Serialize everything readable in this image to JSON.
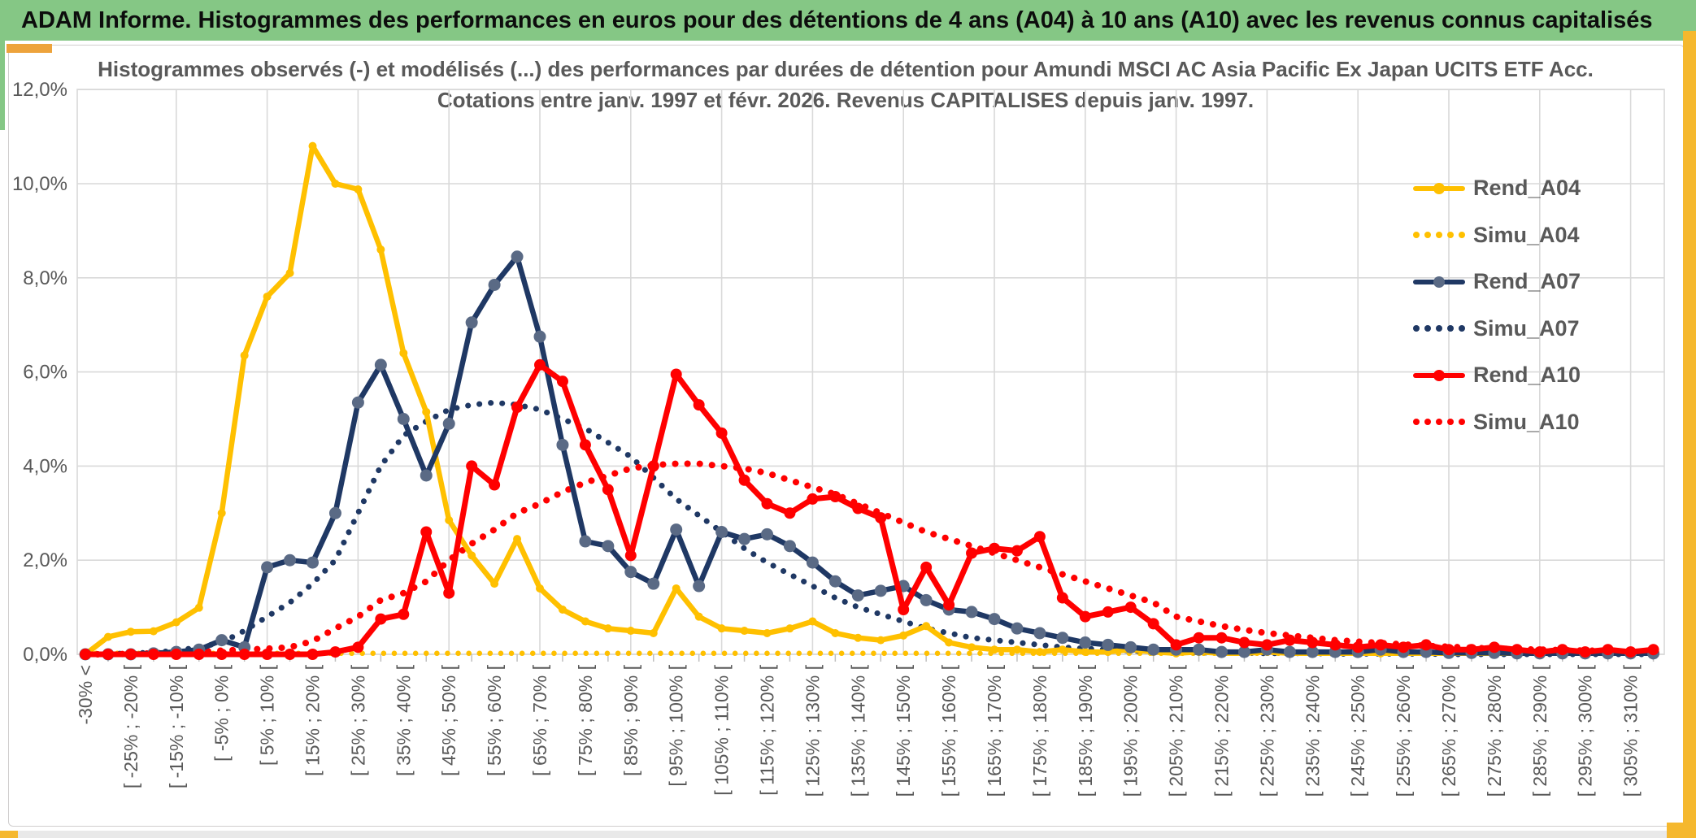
{
  "banner": {
    "title": "ADAM Informe. Histogrammes des performances en euros pour des détentions de 4 ans (A04) à 10 ans (A10) avec les revenus connus capitalisés"
  },
  "chart": {
    "title_line1": "Histogrammes observés (-) et modélisés (...) des performances par durées de détention pour Amundi MSCI AC Asia Pacific Ex Japan UCITS ETF Acc.",
    "title_line2": "Cotations entre janv. 1997 et févr. 2026. Revenus CAPITALISES depuis janv. 1997.",
    "colors": {
      "banner_green": "#85C785",
      "accent_gold": "#F5B82E",
      "grid": "#D9D9D9",
      "axis_line": "#BFBFBF",
      "axis_text": "#595959",
      "title_text": "#595959",
      "gold": "#FFC000",
      "navy": "#1F3864",
      "navy_marker": "#5A6A85",
      "red": "#FF0000"
    },
    "legend": [
      {
        "label": "Rend_A04",
        "series": "Rend_A04",
        "type": "line",
        "color": "#FFC000",
        "marker": "#FFC000"
      },
      {
        "label": "Simu_A04",
        "series": "Simu_A04",
        "type": "dots",
        "color": "#FFC000"
      },
      {
        "label": "Rend_A07",
        "series": "Rend_A07",
        "type": "line",
        "color": "#1F3864",
        "marker": "#5A6A85"
      },
      {
        "label": "Simu_A07",
        "series": "Simu_A07",
        "type": "dots",
        "color": "#1F3864"
      },
      {
        "label": "Rend_A10",
        "series": "Rend_A10",
        "type": "line",
        "color": "#FF0000",
        "marker": "#FF0000"
      },
      {
        "label": "Simu_A10",
        "series": "Simu_A10",
        "type": "dots",
        "color": "#FF0000"
      }
    ]
  },
  "chart_data": {
    "type": "line",
    "title": "Histogrammes observés (-) et modélisés (...) des performances par durées de détention pour Amundi MSCI AC Asia Pacific Ex Japan UCITS ETF Acc. Cotations entre janv. 1997 et févr. 2026. Revenus CAPITALISES depuis janv. 1997.",
    "xlabel": "",
    "ylabel": "",
    "ylim": [
      0,
      12
    ],
    "y_tick_labels": [
      "12,0%",
      "10,0%",
      "8,0%",
      "6,0%",
      "4,0%",
      "2,0%",
      "0,0%"
    ],
    "y_tick_values": [
      12,
      10,
      8,
      6,
      4,
      2,
      0
    ],
    "grid": true,
    "legend_position": "right",
    "x_label_every": 2,
    "x_labels": [
      "-30% <",
      "[ -25% ; -20% [",
      "[ -15% ; -10% [",
      "[ -5% ; 0% [",
      "[ 5% ; 10% [",
      "[ 15% ; 20% [",
      "[ 25% ; 30% [",
      "[ 35% ; 40% [",
      "[ 45% ; 50% [",
      "[ 55% ; 60% [",
      "[ 65% ; 70% [",
      "[ 75% ; 80% [",
      "[ 85% ; 90% [",
      "[ 95% ; 100% [",
      "[ 105% ; 110% [",
      "[ 115% ; 120% [",
      "[ 125% ; 130% [",
      "[ 135% ; 140% [",
      "[ 145% ; 150% [",
      "[ 155% ; 160% [",
      "[ 165% ; 170% [",
      "[ 175% ; 180% [",
      "[ 185% ; 190% [",
      "[ 195% ; 200% [",
      "[ 205% ; 210% [",
      "[ 215% ; 220% [",
      "[ 225% ; 230% [",
      "[ 235% ; 240% [",
      "[ 245% ; 250% [",
      "[ 255% ; 260% [",
      "[ 265% ; 270% [",
      "[ 275% ; 280% [",
      "[ 285% ; 290% [",
      "[ 295% ; 300% [",
      "[ 305% ; 310% ["
    ],
    "series": [
      {
        "name": "Rend_A04",
        "style": "solid",
        "color": "#FFC000",
        "marker_color": "#FFC000",
        "marker_r": 5,
        "width": 6.5,
        "values": [
          0,
          0.37,
          0.48,
          0.49,
          0.68,
          0.99,
          3.0,
          6.35,
          7.6,
          8.1,
          10.8,
          10.0,
          9.88,
          8.6,
          6.4,
          5.15,
          2.85,
          2.1,
          1.5,
          2.45,
          1.4,
          0.95,
          0.7,
          0.55,
          0.5,
          0.45,
          1.4,
          0.8,
          0.55,
          0.5,
          0.45,
          0.55,
          0.7,
          0.45,
          0.35,
          0.3,
          0.4,
          0.6,
          0.25,
          0.15,
          0.1,
          0.1,
          0.05,
          0.1,
          0.05,
          0.05,
          0.1,
          0.05,
          0.02,
          0.05,
          0.02,
          0.02,
          0.05,
          0.02,
          0.02,
          0.02,
          0.02,
          0.02,
          0.02,
          0.02,
          0.02,
          0.02,
          0.02,
          0.02,
          0.02,
          0.02,
          0.02,
          0.02,
          0.02,
          0.02
        ]
      },
      {
        "name": "Simu_A04",
        "style": "dotted",
        "color": "#FFC000",
        "width": 6.5,
        "gap": 13,
        "values": [
          0.02,
          0.02,
          0.02,
          0.02,
          0.02,
          0.02,
          0.02,
          0.02,
          0.02,
          0.02,
          0.02,
          0.02,
          0.02,
          0.02,
          0.02,
          0.02,
          0.02,
          0.02,
          0.02,
          0.02,
          0.02,
          0.02,
          0.02,
          0.02,
          0.02,
          0.02,
          0.02,
          0.02,
          0.02,
          0.02,
          0.02,
          0.02,
          0.02,
          0.02,
          0.02,
          0.02,
          0.02,
          0.02,
          0.02,
          0.02,
          0.02,
          0.02,
          0.02,
          0.02,
          0.02,
          0.02,
          0.02,
          0.02,
          0.02,
          0.02,
          0.02,
          0.02,
          0.02,
          0.02,
          0.02,
          0.02,
          0.02,
          0.02,
          0.02,
          0.02,
          0.02,
          0.02,
          0.02,
          0.02,
          0.02,
          0.02,
          0.02,
          0.02,
          0.02,
          0.02
        ]
      },
      {
        "name": "Rend_A07",
        "style": "solid",
        "color": "#1F3864",
        "marker_color": "#5A6A85",
        "marker_r": 7.5,
        "width": 6.5,
        "values": [
          0,
          0,
          0,
          0.02,
          0.05,
          0.1,
          0.3,
          0.15,
          1.85,
          2.0,
          1.95,
          3.0,
          5.35,
          6.15,
          5.0,
          3.8,
          4.9,
          7.05,
          7.85,
          8.45,
          6.75,
          4.45,
          2.4,
          2.3,
          1.75,
          1.5,
          2.65,
          1.45,
          2.6,
          2.45,
          2.55,
          2.3,
          1.95,
          1.55,
          1.25,
          1.35,
          1.45,
          1.15,
          0.95,
          0.9,
          0.75,
          0.55,
          0.45,
          0.35,
          0.25,
          0.2,
          0.15,
          0.1,
          0.1,
          0.1,
          0.05,
          0.05,
          0.1,
          0.05,
          0.05,
          0.05,
          0.05,
          0.1,
          0.05,
          0.05,
          0.03,
          0.03,
          0.03,
          0.02,
          0.02,
          0.02,
          0.02,
          0.02,
          0.02,
          0.02
        ]
      },
      {
        "name": "Simu_A07",
        "style": "dotted",
        "color": "#1F3864",
        "width": 7,
        "gap": 14,
        "values": [
          0,
          0.01,
          0.02,
          0.04,
          0.08,
          0.15,
          0.25,
          0.5,
          0.8,
          1.1,
          1.5,
          2.0,
          3.0,
          4.0,
          4.65,
          4.95,
          5.2,
          5.3,
          5.35,
          5.3,
          5.2,
          5.0,
          4.8,
          4.5,
          4.2,
          3.75,
          3.3,
          2.95,
          2.6,
          2.25,
          1.95,
          1.7,
          1.45,
          1.2,
          1.0,
          0.85,
          0.7,
          0.55,
          0.45,
          0.35,
          0.3,
          0.25,
          0.2,
          0.15,
          0.12,
          0.1,
          0.08,
          0.06,
          0.05,
          0.04,
          0.03,
          0.03,
          0.02,
          0.02,
          0.02,
          0.01,
          0.01,
          0.01,
          0.01,
          0.01,
          0,
          0,
          0,
          0,
          0,
          0,
          0,
          0,
          0,
          0
        ]
      },
      {
        "name": "Rend_A10",
        "style": "solid",
        "color": "#FF0000",
        "marker_color": "#FF0000",
        "marker_r": 7,
        "width": 7,
        "values": [
          0,
          0,
          0,
          0,
          0,
          0,
          0,
          0,
          0,
          0,
          0,
          0.05,
          0.15,
          0.75,
          0.85,
          2.6,
          1.3,
          4.0,
          3.6,
          5.25,
          6.15,
          5.8,
          4.45,
          3.5,
          2.1,
          4.0,
          5.95,
          5.3,
          4.7,
          3.7,
          3.2,
          3.0,
          3.3,
          3.35,
          3.1,
          2.9,
          0.95,
          1.85,
          1.05,
          2.15,
          2.25,
          2.2,
          2.5,
          1.2,
          0.8,
          0.9,
          1.0,
          0.65,
          0.2,
          0.35,
          0.35,
          0.25,
          0.2,
          0.3,
          0.25,
          0.2,
          0.15,
          0.2,
          0.15,
          0.2,
          0.1,
          0.1,
          0.15,
          0.1,
          0.05,
          0.1,
          0.05,
          0.1,
          0.05,
          0.1
        ]
      },
      {
        "name": "Simu_A10",
        "style": "dotted",
        "color": "#FF0000",
        "width": 8,
        "gap": 15,
        "values": [
          0,
          0,
          0.01,
          0.02,
          0.03,
          0.05,
          0.08,
          0.1,
          0.12,
          0.15,
          0.28,
          0.55,
          0.8,
          1.15,
          1.3,
          1.55,
          2.0,
          2.35,
          2.65,
          3.0,
          3.2,
          3.45,
          3.65,
          3.8,
          3.95,
          4.02,
          4.05,
          4.05,
          4.0,
          3.95,
          3.85,
          3.7,
          3.55,
          3.4,
          3.2,
          3.0,
          2.8,
          2.6,
          2.45,
          2.3,
          2.15,
          2.0,
          1.85,
          1.7,
          1.55,
          1.4,
          1.25,
          1.1,
          0.8,
          0.7,
          0.6,
          0.52,
          0.45,
          0.4,
          0.35,
          0.3,
          0.27,
          0.24,
          0.21,
          0.18,
          0.16,
          0.14,
          0.12,
          0.11,
          0.1,
          0.09,
          0.08,
          0.07,
          0.06,
          0.06
        ]
      }
    ]
  }
}
